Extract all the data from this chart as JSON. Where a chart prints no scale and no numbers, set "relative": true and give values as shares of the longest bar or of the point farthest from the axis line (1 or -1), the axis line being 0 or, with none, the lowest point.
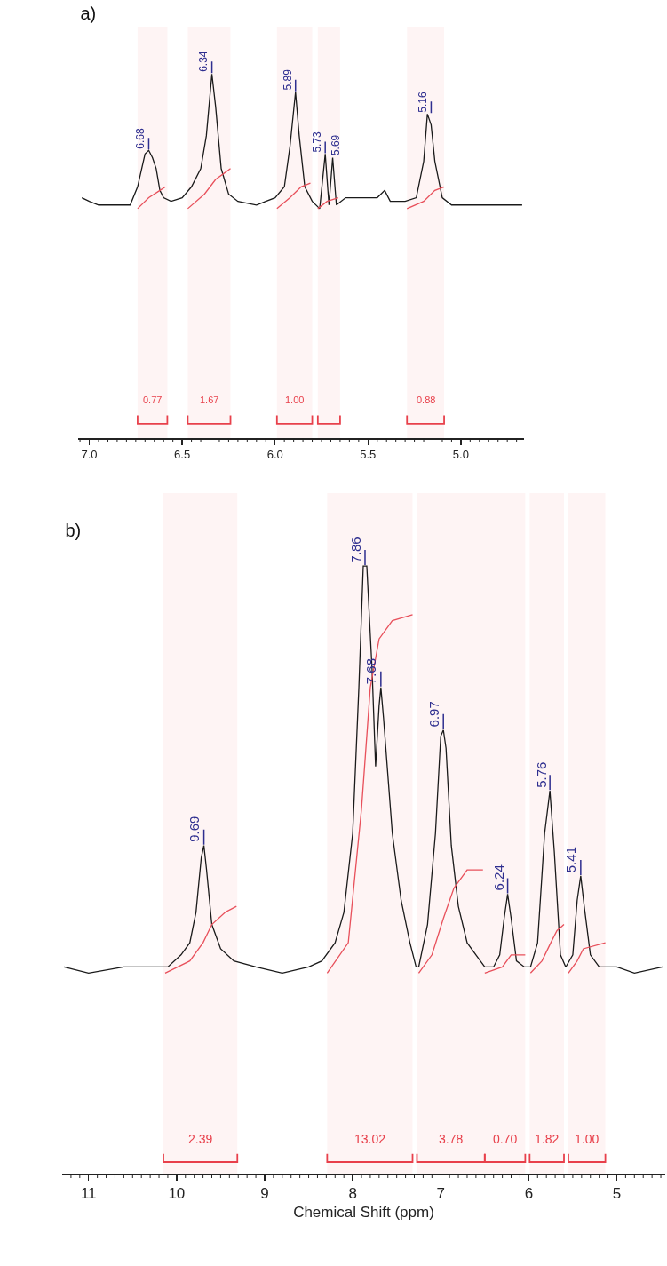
{
  "chart_data": [
    {
      "type": "line",
      "title": "a)",
      "relative": true,
      "grid": false,
      "marker": "none",
      "line_style": "solid",
      "xlim": [
        7.06,
        4.66
      ],
      "xticks": [
        {
          "value": 7.05,
          "label": null
        },
        {
          "value": 7.0,
          "label": "7.0"
        },
        {
          "value": 6.95,
          "label": null
        },
        {
          "value": 6.9,
          "label": null
        },
        {
          "value": 6.85,
          "label": null
        },
        {
          "value": 6.8,
          "label": null
        },
        {
          "value": 6.75,
          "label": null
        },
        {
          "value": 6.7,
          "label": null
        },
        {
          "value": 6.65,
          "label": null
        },
        {
          "value": 6.6,
          "label": null
        },
        {
          "value": 6.55,
          "label": null
        },
        {
          "value": 6.5,
          "label": "6.5"
        },
        {
          "value": 6.45,
          "label": null
        },
        {
          "value": 6.4,
          "label": null
        },
        {
          "value": 6.35,
          "label": null
        },
        {
          "value": 6.3,
          "label": null
        },
        {
          "value": 6.25,
          "label": null
        },
        {
          "value": 6.2,
          "label": null
        },
        {
          "value": 6.15,
          "label": null
        },
        {
          "value": 6.1,
          "label": null
        },
        {
          "value": 6.05,
          "label": null
        },
        {
          "value": 6.0,
          "label": "6.0"
        },
        {
          "value": 5.95,
          "label": null
        },
        {
          "value": 5.9,
          "label": null
        },
        {
          "value": 5.85,
          "label": null
        },
        {
          "value": 5.8,
          "label": null
        },
        {
          "value": 5.75,
          "label": null
        },
        {
          "value": 5.7,
          "label": null
        },
        {
          "value": 5.65,
          "label": null
        },
        {
          "value": 5.6,
          "label": null
        },
        {
          "value": 5.55,
          "label": null
        },
        {
          "value": 5.5,
          "label": "5.5"
        },
        {
          "value": 5.45,
          "label": null
        },
        {
          "value": 5.4,
          "label": null
        },
        {
          "value": 5.35,
          "label": null
        },
        {
          "value": 5.3,
          "label": null
        },
        {
          "value": 5.25,
          "label": null
        },
        {
          "value": 5.2,
          "label": null
        },
        {
          "value": 5.15,
          "label": null
        },
        {
          "value": 5.1,
          "label": null
        },
        {
          "value": 5.05,
          "label": null
        },
        {
          "value": 5.0,
          "label": "5.0"
        },
        {
          "value": 4.95,
          "label": null
        },
        {
          "value": 4.9,
          "label": null
        },
        {
          "value": 4.85,
          "label": null
        },
        {
          "value": 4.8,
          "label": null
        },
        {
          "value": 4.75,
          "label": null
        },
        {
          "value": 4.7,
          "label": null
        }
      ],
      "series": [
        {
          "color": "#1a1a1a",
          "x": [
            7.04,
            7.0,
            6.95,
            6.85,
            6.78,
            6.74,
            6.7,
            6.68,
            6.66,
            6.64,
            6.62,
            6.6,
            6.56,
            6.5,
            6.45,
            6.4,
            6.37,
            6.34,
            6.32,
            6.29,
            6.25,
            6.2,
            6.1,
            6.05,
            6.0,
            5.95,
            5.92,
            5.89,
            5.87,
            5.84,
            5.8,
            5.76,
            5.73,
            5.71,
            5.69,
            5.67,
            5.62,
            5.55,
            5.45,
            5.41,
            5.38,
            5.3,
            5.24,
            5.2,
            5.18,
            5.16,
            5.14,
            5.1,
            5.05,
            4.95,
            4.85,
            4.75,
            4.67
          ],
          "values": [
            0.66,
            0.65,
            0.64,
            0.64,
            0.64,
            0.69,
            0.78,
            0.79,
            0.77,
            0.74,
            0.68,
            0.66,
            0.65,
            0.66,
            0.69,
            0.74,
            0.83,
            1.0,
            0.91,
            0.74,
            0.67,
            0.65,
            0.64,
            0.65,
            0.66,
            0.69,
            0.8,
            0.95,
            0.83,
            0.69,
            0.65,
            0.63,
            0.78,
            0.64,
            0.77,
            0.64,
            0.66,
            0.66,
            0.66,
            0.68,
            0.65,
            0.65,
            0.66,
            0.76,
            0.89,
            0.86,
            0.76,
            0.66,
            0.64,
            0.64,
            0.64,
            0.64,
            0.64
          ]
        },
        {
          "color": "#e8505b",
          "x": [
            6.74,
            6.68,
            6.62,
            6.59,
            6.55,
            6.47,
            6.38,
            6.32,
            6.24,
            6.1,
            5.99,
            5.92,
            5.86,
            5.81,
            5.79,
            5.77,
            5.72,
            5.66,
            5.5,
            5.29,
            5.2,
            5.14,
            5.09
          ],
          "values": [
            0.63,
            0.66,
            0.68,
            0.69,
            null,
            0.63,
            0.67,
            0.71,
            0.74,
            null,
            0.63,
            0.66,
            0.69,
            0.7,
            null,
            0.63,
            0.65,
            0.66,
            null,
            0.63,
            0.65,
            0.68,
            0.69
          ]
        }
      ],
      "bands": [
        {
          "axis": "x",
          "from": 6.74,
          "to": 6.58,
          "label": "0.77",
          "color": "#e8404b"
        },
        {
          "axis": "x",
          "from": 6.47,
          "to": 6.24,
          "label": "1.67",
          "color": "#e8404b"
        },
        {
          "axis": "x",
          "from": 5.99,
          "to": 5.8,
          "label": "1.00",
          "color": "#e8404b"
        },
        {
          "axis": "x",
          "from": 5.77,
          "to": 5.65,
          "label": null,
          "color": "#e8404b"
        },
        {
          "axis": "x",
          "from": 5.29,
          "to": 5.09,
          "label": "0.88",
          "color": "#e8404b"
        }
      ],
      "annotations": [
        {
          "text": "6.68",
          "x": 6.68,
          "y": 0.79
        },
        {
          "text": "6.34",
          "x": 6.34,
          "y": 1.0
        },
        {
          "text": "5.89",
          "x": 5.89,
          "y": 0.95
        },
        {
          "text": "5.73",
          "x": 5.73,
          "y": 0.78
        },
        {
          "text": "5.69",
          "x": 5.69,
          "y": 0.77
        },
        {
          "text": "5.16",
          "x": 5.16,
          "y": 0.89
        }
      ]
    },
    {
      "type": "line",
      "title": "b)",
      "xlabel": "Chemical Shift (ppm)",
      "relative": true,
      "grid": false,
      "marker": "none",
      "line_style": "solid",
      "xlim": [
        11.3,
        4.45
      ],
      "xticks": [
        {
          "value": 11.2,
          "label": null
        },
        {
          "value": 11.1,
          "label": null
        },
        {
          "value": 11,
          "label": "11"
        },
        {
          "value": 10.9,
          "label": null
        },
        {
          "value": 10.8,
          "label": null
        },
        {
          "value": 10.7,
          "label": null
        },
        {
          "value": 10.6,
          "label": null
        },
        {
          "value": 10.5,
          "label": null
        },
        {
          "value": 10.4,
          "label": null
        },
        {
          "value": 10.3,
          "label": null
        },
        {
          "value": 10.2,
          "label": null
        },
        {
          "value": 10.1,
          "label": null
        },
        {
          "value": 10,
          "label": "10"
        },
        {
          "value": 9.9,
          "label": null
        },
        {
          "value": 9.8,
          "label": null
        },
        {
          "value": 9.7,
          "label": null
        },
        {
          "value": 9.6,
          "label": null
        },
        {
          "value": 9.5,
          "label": null
        },
        {
          "value": 9.4,
          "label": null
        },
        {
          "value": 9.3,
          "label": null
        },
        {
          "value": 9.2,
          "label": null
        },
        {
          "value": 9.1,
          "label": null
        },
        {
          "value": 9,
          "label": "9"
        },
        {
          "value": 8.9,
          "label": null
        },
        {
          "value": 8.8,
          "label": null
        },
        {
          "value": 8.7,
          "label": null
        },
        {
          "value": 8.6,
          "label": null
        },
        {
          "value": 8.5,
          "label": null
        },
        {
          "value": 8.4,
          "label": null
        },
        {
          "value": 8.3,
          "label": null
        },
        {
          "value": 8.2,
          "label": null
        },
        {
          "value": 8.1,
          "label": null
        },
        {
          "value": 8,
          "label": "8"
        },
        {
          "value": 7.9,
          "label": null
        },
        {
          "value": 7.8,
          "label": null
        },
        {
          "value": 7.7,
          "label": null
        },
        {
          "value": 7.6,
          "label": null
        },
        {
          "value": 7.5,
          "label": null
        },
        {
          "value": 7.4,
          "label": null
        },
        {
          "value": 7.3,
          "label": null
        },
        {
          "value": 7.2,
          "label": null
        },
        {
          "value": 7.1,
          "label": null
        },
        {
          "value": 7,
          "label": "7"
        },
        {
          "value": 6.9,
          "label": null
        },
        {
          "value": 6.8,
          "label": null
        },
        {
          "value": 6.7,
          "label": null
        },
        {
          "value": 6.6,
          "label": null
        },
        {
          "value": 6.5,
          "label": null
        },
        {
          "value": 6.4,
          "label": null
        },
        {
          "value": 6.3,
          "label": null
        },
        {
          "value": 6.2,
          "label": null
        },
        {
          "value": 6.1,
          "label": null
        },
        {
          "value": 6,
          "label": "6"
        },
        {
          "value": 5.9,
          "label": null
        },
        {
          "value": 5.8,
          "label": null
        },
        {
          "value": 5.7,
          "label": null
        },
        {
          "value": 5.6,
          "label": null
        },
        {
          "value": 5.5,
          "label": null
        },
        {
          "value": 5.4,
          "label": null
        },
        {
          "value": 5.3,
          "label": null
        },
        {
          "value": 5.2,
          "label": null
        },
        {
          "value": 5.1,
          "label": null
        },
        {
          "value": 5,
          "label": "5"
        },
        {
          "value": 4.9,
          "label": null
        },
        {
          "value": 4.8,
          "label": null
        },
        {
          "value": 4.7,
          "label": null
        },
        {
          "value": 4.6,
          "label": null
        },
        {
          "value": 4.5,
          "label": null
        }
      ],
      "series": [
        {
          "color": "#1a1a1a",
          "x": [
            11.28,
            11.0,
            10.6,
            10.3,
            10.1,
            9.95,
            9.85,
            9.78,
            9.72,
            9.69,
            9.66,
            9.6,
            9.5,
            9.35,
            9.1,
            8.8,
            8.5,
            8.35,
            8.2,
            8.1,
            8.0,
            7.93,
            7.88,
            7.84,
            7.78,
            7.74,
            7.7,
            7.68,
            7.65,
            7.55,
            7.45,
            7.35,
            7.28,
            7.25,
            7.15,
            7.06,
            7.0,
            6.97,
            6.94,
            6.88,
            6.8,
            6.7,
            6.6,
            6.5,
            6.4,
            6.33,
            6.28,
            6.24,
            6.2,
            6.14,
            6.05,
            5.98,
            5.9,
            5.82,
            5.76,
            5.71,
            5.64,
            5.58,
            5.5,
            5.45,
            5.41,
            5.37,
            5.3,
            5.2,
            5.0,
            4.8,
            4.48
          ],
          "values": [
            0.34,
            0.33,
            0.34,
            0.34,
            0.34,
            0.36,
            0.38,
            0.43,
            0.52,
            0.54,
            0.5,
            0.41,
            0.37,
            0.35,
            0.34,
            0.33,
            0.34,
            0.35,
            0.38,
            0.43,
            0.56,
            0.8,
            1.0,
            1.0,
            0.83,
            0.67,
            0.77,
            0.8,
            0.75,
            0.56,
            0.45,
            0.38,
            0.34,
            0.34,
            0.41,
            0.56,
            0.72,
            0.73,
            0.7,
            0.54,
            0.44,
            0.38,
            0.36,
            0.34,
            0.34,
            0.36,
            0.42,
            0.46,
            0.42,
            0.35,
            0.34,
            0.34,
            0.38,
            0.56,
            0.63,
            0.53,
            0.36,
            0.34,
            0.36,
            0.45,
            0.49,
            0.44,
            0.36,
            0.34,
            0.34,
            0.33,
            0.34
          ]
        },
        {
          "color": "#e8505b",
          "x": [
            10.13,
            9.85,
            9.7,
            9.6,
            9.45,
            9.32,
            9.0,
            8.29,
            8.05,
            7.9,
            7.8,
            7.7,
            7.55,
            7.32,
            7.28,
            7.25,
            7.1,
            6.97,
            6.85,
            6.7,
            6.52,
            6.51,
            6.5,
            6.3,
            6.2,
            6.04,
            6.01,
            5.98,
            5.85,
            5.75,
            5.68,
            5.6,
            5.57,
            5.55,
            5.45,
            5.38,
            5.13
          ],
          "values": [
            0.33,
            0.35,
            0.38,
            0.41,
            0.43,
            0.44,
            null,
            0.33,
            0.38,
            0.6,
            0.8,
            0.88,
            0.91,
            0.92,
            null,
            0.33,
            0.36,
            0.42,
            0.47,
            0.5,
            0.5,
            null,
            0.33,
            0.34,
            0.36,
            0.36,
            null,
            0.33,
            0.35,
            0.38,
            0.4,
            0.41,
            null,
            0.33,
            0.35,
            0.37,
            0.38
          ]
        }
      ],
      "bands": [
        {
          "axis": "x",
          "from": 10.15,
          "to": 9.31,
          "label": "2.39",
          "color": "#e8404b"
        },
        {
          "axis": "x",
          "from": 8.29,
          "to": 7.32,
          "label": "13.02",
          "color": "#e8404b"
        },
        {
          "axis": "x",
          "from": 7.27,
          "to": 6.5,
          "label": "3.78",
          "color": "#e8404b"
        },
        {
          "axis": "x",
          "from": 6.5,
          "to": 6.04,
          "label": "0.70",
          "color": "#e8404b"
        },
        {
          "axis": "x",
          "from": 5.99,
          "to": 5.6,
          "label": "1.82",
          "color": "#e8404b"
        },
        {
          "axis": "x",
          "from": 5.55,
          "to": 5.13,
          "label": "1.00",
          "color": "#e8404b"
        }
      ],
      "annotations": [
        {
          "text": "9.69",
          "x": 9.69,
          "y": 0.54
        },
        {
          "text": "7.86",
          "x": 7.86,
          "y": 1.0
        },
        {
          "text": "7.68",
          "x": 7.68,
          "y": 0.8
        },
        {
          "text": "6.97",
          "x": 6.97,
          "y": 0.73
        },
        {
          "text": "6.24",
          "x": 6.24,
          "y": 0.46
        },
        {
          "text": "5.76",
          "x": 5.76,
          "y": 0.63
        },
        {
          "text": "5.41",
          "x": 5.41,
          "y": 0.49
        }
      ]
    }
  ]
}
